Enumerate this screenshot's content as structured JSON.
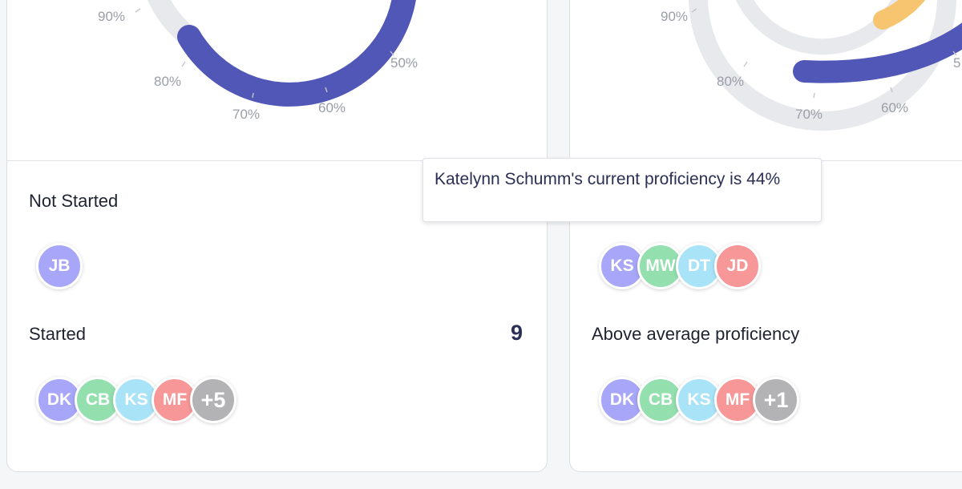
{
  "left_card": {
    "gauge": {
      "tick_labels": [
        "90%",
        "80%",
        "70%",
        "60%",
        "50%"
      ],
      "progress_color": "#5157b7",
      "track_color": "#e8e9ec"
    },
    "not_started": {
      "title": "Not Started",
      "avatars": [
        {
          "initials": "JB",
          "color": "#a7a6f8"
        }
      ]
    },
    "started": {
      "title": "Started",
      "count": "9",
      "avatars": [
        {
          "initials": "DK",
          "color": "#a7a6f8"
        },
        {
          "initials": "CB",
          "color": "#93dfae"
        },
        {
          "initials": "KS",
          "color": "#a9e3f7"
        },
        {
          "initials": "MF",
          "color": "#f79797"
        },
        {
          "initials": "+5",
          "color": "#b3b3b5"
        }
      ]
    }
  },
  "right_card": {
    "gauge": {
      "tick_labels": [
        "90%",
        "80%",
        "70%",
        "60%",
        "5"
      ],
      "progress_color": "#5157b7",
      "accent_color": "#f7c56f",
      "track_color": "#e8e9ec"
    },
    "upper_group": {
      "avatars": [
        {
          "initials": "KS",
          "color": "#a7a6f8"
        },
        {
          "initials": "MW",
          "color": "#93dfae"
        },
        {
          "initials": "DT",
          "color": "#a9e3f7"
        },
        {
          "initials": "JD",
          "color": "#f79797"
        }
      ]
    },
    "above_average": {
      "title": "Above average proficiency",
      "avatars": [
        {
          "initials": "DK",
          "color": "#a7a6f8"
        },
        {
          "initials": "CB",
          "color": "#93dfae"
        },
        {
          "initials": "KS",
          "color": "#a9e3f7"
        },
        {
          "initials": "MF",
          "color": "#f79797"
        },
        {
          "initials": "+1",
          "color": "#b3b3b5"
        }
      ]
    }
  },
  "tooltip": {
    "text": "Katelynn Schumm's current proficiency is 44%"
  }
}
